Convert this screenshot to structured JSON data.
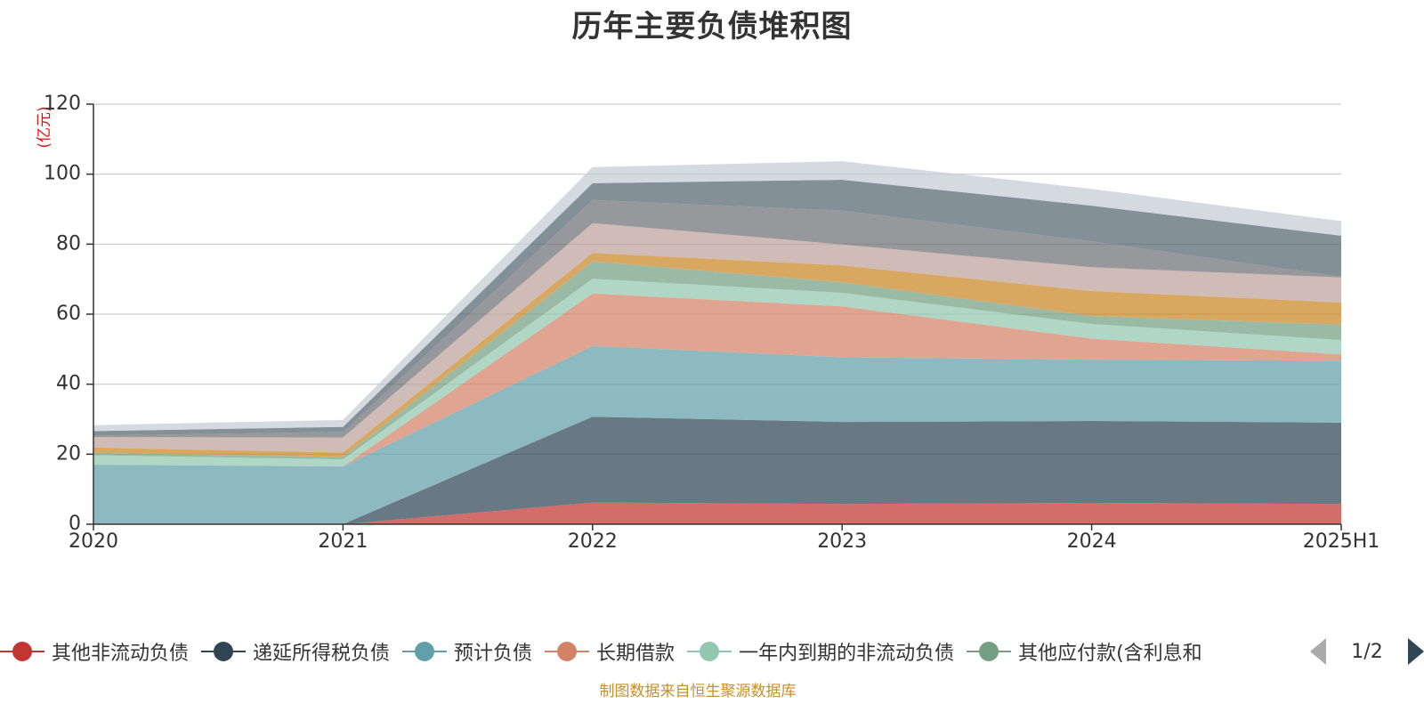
{
  "chart_data": {
    "type": "area",
    "stacked": true,
    "title": "历年主要负债堆积图",
    "unit": "(亿元)",
    "x": [
      "2020",
      "2021",
      "2022",
      "2023",
      "2024",
      "2025H1"
    ],
    "y_ticks": [
      "0",
      "20",
      "40",
      "60",
      "80",
      "100",
      "120"
    ],
    "ylim": [
      0,
      120
    ],
    "grid": true,
    "legend_position": "bottom",
    "series": [
      {
        "name": "其他非流动负债",
        "color": "#c23531",
        "values": [
          0,
          0,
          6.2,
          5.8,
          6.1,
          5.8
        ]
      },
      {
        "name": "递延所得税负债",
        "color": "#2f4554",
        "values": [
          0,
          0,
          24.5,
          23.4,
          23.4,
          23.2
        ]
      },
      {
        "name": "预计负债",
        "color": "#61a0a8",
        "values": [
          17.0,
          16.5,
          20.2,
          18.5,
          17.5,
          17.7
        ]
      },
      {
        "name": "长期借款",
        "color": "#d48265",
        "values": [
          0,
          0,
          15.0,
          14.5,
          6.0,
          1.8
        ]
      },
      {
        "name": "一年内到期的非流动负债",
        "color": "#91c7ae",
        "values": [
          2.7,
          2.0,
          4.2,
          3.9,
          4.2,
          4.1
        ]
      },
      {
        "name": "其他应付款(含利息和",
        "color": "#749f83",
        "values": [
          0.7,
          0.7,
          5.0,
          3.0,
          2.3,
          4.4
        ]
      },
      {
        "name": "",
        "color": "#ca8622",
        "values": [
          1.5,
          1.3,
          2.4,
          4.8,
          7.1,
          6.3
        ]
      },
      {
        "name": "",
        "color": "#bda29a",
        "values": [
          3.0,
          4.3,
          8.5,
          6.0,
          6.8,
          7.2
        ]
      },
      {
        "name": "",
        "color": "#6e7074",
        "values": [
          0.4,
          1.6,
          6.6,
          9.7,
          7.4,
          0.2
        ]
      },
      {
        "name": "",
        "color": "#546570",
        "values": [
          1.3,
          1.4,
          4.8,
          8.8,
          10.2,
          11.7
        ]
      },
      {
        "name": "",
        "color": "#c4ccd3",
        "values": [
          1.7,
          2.0,
          4.6,
          5.3,
          4.8,
          4.2
        ]
      }
    ]
  },
  "legend": {
    "page_indicator": "1/2"
  },
  "source_note": "制图数据来自恒生聚源数据库"
}
